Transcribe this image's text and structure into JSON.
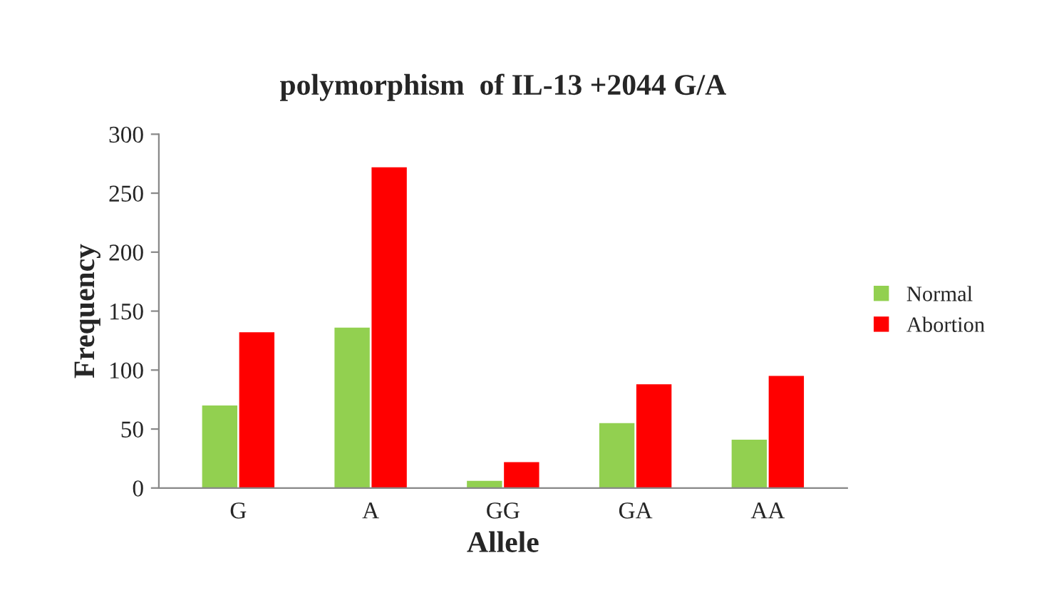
{
  "chart_data": {
    "type": "bar",
    "title": "polymorphism  of IL-13 +2044 G/A",
    "xlabel": "Allele",
    "ylabel": "Frequency",
    "categories": [
      "G",
      "A",
      "GG",
      "GA",
      "AA"
    ],
    "series": [
      {
        "name": "Normal",
        "color": "#92d050",
        "values": [
          70,
          136,
          6,
          55,
          41
        ]
      },
      {
        "name": "Abortion",
        "color": "#ff0000",
        "values": [
          132,
          272,
          22,
          88,
          95
        ]
      }
    ],
    "ylim": [
      0,
      300
    ],
    "yticks": [
      0,
      50,
      100,
      150,
      200,
      250,
      300
    ],
    "grid": false,
    "legend": "right"
  }
}
